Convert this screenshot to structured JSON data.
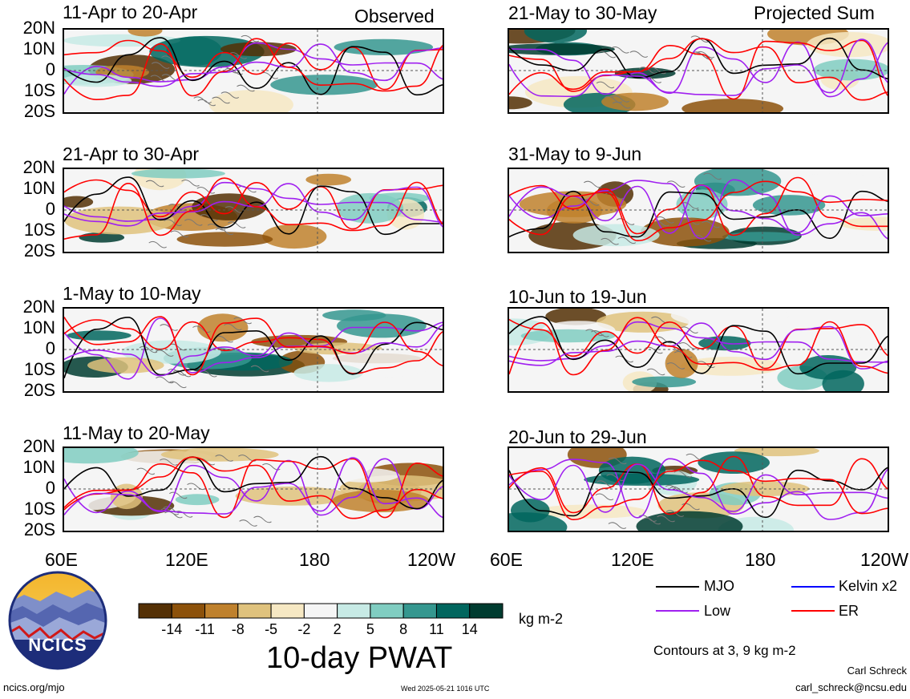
{
  "header": {
    "observed": "Observed",
    "projected": "Projected Sum"
  },
  "panels": [
    {
      "title": "11-Apr to 20-Apr"
    },
    {
      "title": "21-May to 30-May"
    },
    {
      "title": "21-Apr to 30-Apr"
    },
    {
      "title": "31-May to 9-Jun"
    },
    {
      "title": "1-May to 10-May"
    },
    {
      "title": "10-Jun to 19-Jun"
    },
    {
      "title": "11-May to 20-May"
    },
    {
      "title": "20-Jun to 29-Jun"
    }
  ],
  "lat_labels": [
    "20N",
    "10N",
    "0",
    "10S",
    "20S"
  ],
  "lon_labels": [
    "60E",
    "120E",
    "180",
    "120W"
  ],
  "colorbar": {
    "ticks": [
      "-14",
      "-11",
      "-8",
      "-5",
      "-2",
      "2",
      "5",
      "8",
      "11",
      "14"
    ],
    "colors": [
      "#543005",
      "#8c510a",
      "#bf812d",
      "#dfc27d",
      "#f6e8c3",
      "#f5f5f5",
      "#c7eae5",
      "#80cdc1",
      "#35978f",
      "#01665e",
      "#003c30"
    ],
    "units": "kg m-2",
    "title": "10-day PWAT"
  },
  "legend": {
    "items": [
      {
        "label": "MJO",
        "color": "#000000"
      },
      {
        "label": "Kelvin x2",
        "color": "#0000ff"
      },
      {
        "label": "Low",
        "color": "#a020f0"
      },
      {
        "label": "ER",
        "color": "#ff0000"
      }
    ],
    "contours_note": "Contours at 3, 9 kg m-2"
  },
  "logo": {
    "text": "NCICS"
  },
  "footer": {
    "url": "ncics.org/mjo",
    "timestamp": "Wed 2025-05-21 1016 UTC",
    "author": "Carl Schreck",
    "email": "carl_schreck@ncsu.edu"
  }
}
